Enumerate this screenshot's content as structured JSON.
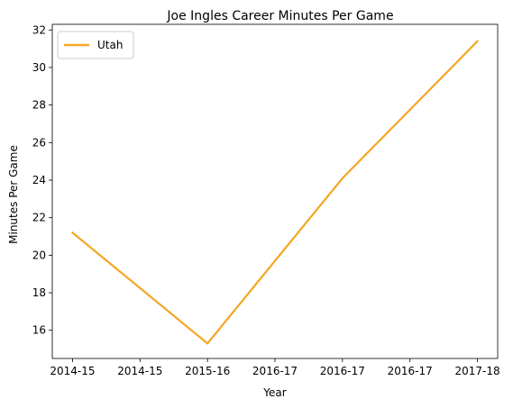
{
  "chart_data": {
    "type": "line",
    "title": "Joe Ingles Career Minutes Per Game",
    "xlabel": "Year",
    "ylabel": "Minutes Per Game",
    "x_tick_labels": [
      "2014-15",
      "2014-15",
      "2015-16",
      "2016-17",
      "2016-17",
      "2016-17",
      "2017-18"
    ],
    "x_tick_values": [
      0,
      0.5,
      1,
      1.5,
      2,
      2.5,
      3
    ],
    "x": [
      "2014-15",
      "2015-16",
      "2016-17",
      "2017-18"
    ],
    "series": [
      {
        "name": "Utah",
        "color": "#f5a623",
        "values": [
          21.2,
          15.3,
          24.1,
          31.4
        ]
      }
    ],
    "ylim": [
      14.5,
      32.3
    ],
    "y_ticks": [
      16,
      18,
      20,
      22,
      24,
      26,
      28,
      30,
      32
    ],
    "grid": false,
    "legend": "top-left"
  }
}
